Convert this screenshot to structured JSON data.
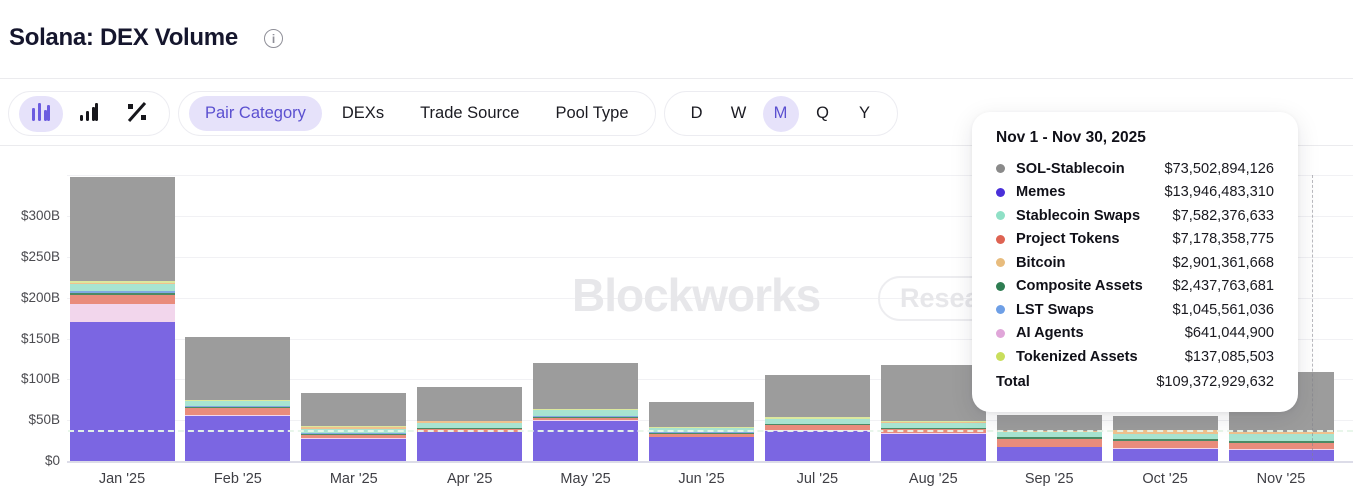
{
  "header": {
    "title": "Solana: DEX Volume"
  },
  "toolbar": {
    "chart_types": [
      {
        "name": "stacked-bar-chart",
        "selected": true
      },
      {
        "name": "ascending-bar-chart",
        "selected": false
      },
      {
        "name": "percent-view",
        "selected": false
      }
    ],
    "tabs": [
      {
        "label": "Pair Category",
        "selected": true
      },
      {
        "label": "DEXs",
        "selected": false
      },
      {
        "label": "Trade Source",
        "selected": false
      },
      {
        "label": "Pool Type",
        "selected": false
      }
    ],
    "ranges": [
      {
        "label": "D",
        "selected": false
      },
      {
        "label": "W",
        "selected": false
      },
      {
        "label": "M",
        "selected": true
      },
      {
        "label": "Q",
        "selected": false
      },
      {
        "label": "Y",
        "selected": false
      }
    ]
  },
  "watermark": {
    "brand": "Blockworks",
    "button": "Research"
  },
  "tooltip": {
    "title": "Nov 1 - Nov 30, 2025",
    "rows": [
      {
        "label": "SOL-Stablecoin",
        "value": "$73,502,894,126",
        "dot": "#8a8a8a"
      },
      {
        "label": "Memes",
        "value": "$13,946,483,310",
        "dot": "#4a30d9"
      },
      {
        "label": "Stablecoin Swaps",
        "value": "$7,582,376,633",
        "dot": "#8fe0c6"
      },
      {
        "label": "Project Tokens",
        "value": "$7,178,358,775",
        "dot": "#de6352"
      },
      {
        "label": "Bitcoin",
        "value": "$2,901,361,668",
        "dot": "#e8bc7d"
      },
      {
        "label": "Composite Assets",
        "value": "$2,437,763,681",
        "dot": "#2e7d52"
      },
      {
        "label": "LST Swaps",
        "value": "$1,045,561,036",
        "dot": "#6e9fe6"
      },
      {
        "label": "AI Agents",
        "value": "$641,044,900",
        "dot": "#e0a6d9"
      },
      {
        "label": "Tokenized Assets",
        "value": "$137,085,503",
        "dot": "#c9de5c"
      }
    ],
    "total": {
      "label": "Total",
      "value": "$109,372,929,632"
    }
  },
  "chart_data": {
    "type": "bar",
    "stacked": true,
    "title": "Solana: DEX Volume",
    "unit": "USD billions",
    "categories": [
      "Jan '25",
      "Feb '25",
      "Mar '25",
      "Apr '25",
      "May '25",
      "Jun '25",
      "Jul '25",
      "Aug '25",
      "Sep '25",
      "Oct '25",
      "Nov '25"
    ],
    "series": [
      {
        "name": "Memes",
        "color": "#7b66e2",
        "values": [
          170,
          55,
          27,
          35,
          49,
          29,
          37,
          33,
          17,
          15,
          13.9
        ]
      },
      {
        "name": "AI Agents",
        "color": "#f2d6ec",
        "values": [
          22,
          2,
          1.5,
          1,
          1,
          1,
          1,
          1,
          0.5,
          0.5,
          0.6
        ]
      },
      {
        "name": "Project Tokens",
        "color": "#e98c7c",
        "values": [
          12,
          8,
          4,
          3,
          3,
          3,
          6,
          5,
          10,
          9,
          7.2
        ]
      },
      {
        "name": "Composite Assets",
        "color": "#4c8a65",
        "values": [
          2,
          1.5,
          1,
          1,
          1,
          1,
          1,
          1,
          1.5,
          2,
          2.4
        ]
      },
      {
        "name": "LST Swaps",
        "color": "#82a8e2",
        "values": [
          3,
          1.5,
          1,
          1,
          1,
          1,
          1,
          1,
          0.5,
          0.5,
          1.0
        ]
      },
      {
        "name": "Stablecoin Swaps",
        "color": "#a8e4d1",
        "values": [
          8,
          5,
          5,
          6,
          7,
          5,
          5,
          6,
          6,
          6,
          7.6
        ]
      },
      {
        "name": "Bitcoin",
        "color": "#efc28e",
        "values": [
          1,
          1,
          2,
          2,
          1,
          1,
          1,
          1,
          1,
          5,
          2.9
        ]
      },
      {
        "name": "Tokenized Assets",
        "color": "#dce89e",
        "values": [
          3,
          1,
          1,
          0.5,
          0.5,
          0.5,
          2,
          0.5,
          0.5,
          0.5,
          0.1
        ]
      },
      {
        "name": "SOL-Stablecoin",
        "color": "#9c9c9c",
        "values": [
          127,
          77,
          41,
          41,
          57,
          31,
          51,
          69,
          19,
          17,
          73.5
        ]
      }
    ],
    "yticks": [
      {
        "label": "$0",
        "b": 0
      },
      {
        "label": "$50B",
        "b": 50
      },
      {
        "label": "$100B",
        "b": 100
      },
      {
        "label": "$150B",
        "b": 150
      },
      {
        "label": "$200B",
        "b": 200
      },
      {
        "label": "$250B",
        "b": 250
      },
      {
        "label": "$300B",
        "b": 300
      }
    ],
    "extra_gridlines_b": [
      350
    ],
    "ylim": [
      0,
      369
    ],
    "grid": true,
    "reference_line_b": 37,
    "hovered_category": "Nov '25"
  }
}
